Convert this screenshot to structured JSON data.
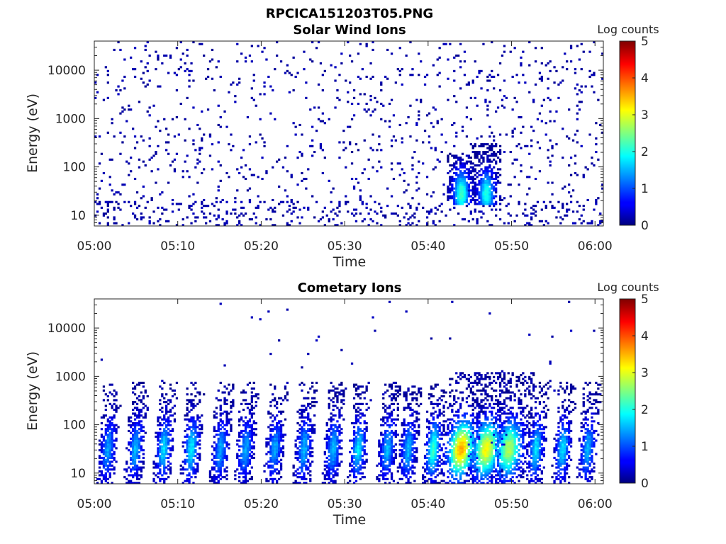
{
  "figure_title": "RPCICA151203T05.PNG",
  "chart_data": [
    {
      "type": "heatmap",
      "title": "Solar Wind Ions",
      "xlabel": "Time",
      "ylabel": "Energy (eV)",
      "xlim": [
        "05:00",
        "06:01"
      ],
      "ylim": [
        6,
        40000
      ],
      "yscale": "log",
      "x_ticks": [
        "05:00",
        "05:10",
        "05:20",
        "05:30",
        "05:40",
        "05:50",
        "06:00"
      ],
      "y_ticks": [
        "10",
        "100",
        "1000",
        "10000"
      ],
      "colorbar": {
        "label": "Log counts",
        "min": 0,
        "max": 5,
        "ticks": [
          "0",
          "1",
          "2",
          "3",
          "4",
          "5"
        ],
        "colormap": "jet"
      },
      "features": [
        {
          "t_start_min": 0,
          "t_end_min": 61,
          "energy_min": 6,
          "energy_max": 30000,
          "log_counts": 0.1,
          "pattern": "sparse background"
        },
        {
          "t_start_min": 43,
          "t_end_min": 45,
          "energy_min": 18,
          "energy_max": 200,
          "log_counts": 2.1,
          "pattern": "ion burst"
        },
        {
          "t_start_min": 46,
          "t_end_min": 48,
          "energy_min": 18,
          "energy_max": 300,
          "log_counts": 1.9,
          "pattern": "ion burst"
        }
      ]
    },
    {
      "type": "heatmap",
      "title": "Cometary Ions",
      "xlabel": "Time",
      "ylabel": "Energy (eV)",
      "xlim": [
        "05:00",
        "06:01"
      ],
      "ylim": [
        6,
        40000
      ],
      "yscale": "log",
      "x_ticks": [
        "05:00",
        "05:10",
        "05:20",
        "05:30",
        "05:40",
        "05:50",
        "06:00"
      ],
      "y_ticks": [
        "10",
        "100",
        "1000",
        "10000"
      ],
      "colorbar": {
        "label": "Log counts",
        "min": 0,
        "max": 5,
        "ticks": [
          "0",
          "1",
          "2",
          "3",
          "4",
          "5"
        ],
        "colormap": "jet"
      },
      "feature_times_min": [
        1.5,
        4.8,
        8.2,
        11.5,
        15,
        18,
        21.5,
        25,
        28.5,
        31.5,
        35,
        37.5,
        40.5,
        43.8,
        46.8,
        49.5,
        52.8,
        56,
        59
      ],
      "peak_log_counts": [
        1.3,
        1.4,
        1.6,
        1.7,
        1.3,
        1.3,
        1.3,
        1.4,
        1.4,
        1.6,
        1.4,
        1.4,
        2.0,
        3.4,
        3.0,
        2.6,
        1.6,
        1.6,
        1.4
      ]
    }
  ]
}
